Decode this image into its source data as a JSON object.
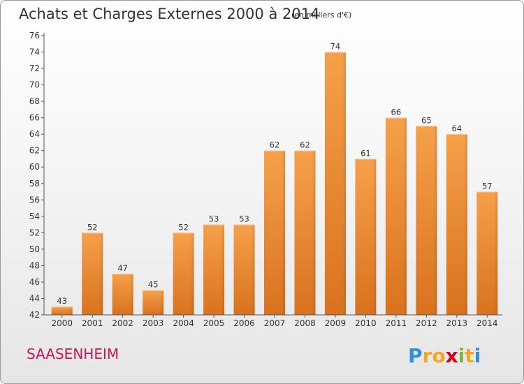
{
  "chart_data": {
    "type": "bar",
    "title": "Achats et Charges Externes 2000 à 2014",
    "subtitle": "(en milliers d'€)",
    "categories": [
      "2000",
      "2001",
      "2002",
      "2003",
      "2004",
      "2005",
      "2006",
      "2007",
      "2008",
      "2009",
      "2010",
      "2011",
      "2012",
      "2013",
      "2014"
    ],
    "values": [
      43,
      52,
      47,
      45,
      52,
      53,
      53,
      62,
      62,
      74,
      61,
      66,
      65,
      64,
      57
    ],
    "ylim": [
      42,
      76
    ],
    "yticks": [
      42,
      44,
      46,
      48,
      50,
      52,
      54,
      56,
      58,
      60,
      62,
      64,
      66,
      68,
      70,
      72,
      74,
      76
    ],
    "grid": false,
    "bar_color": "#f08c35"
  },
  "commune": "SAASENHEIM",
  "logo": {
    "letters": [
      "P",
      "r",
      "o",
      "x",
      "i",
      "t",
      "i"
    ],
    "colors": [
      "#2f8fd8",
      "#f5a623",
      "#f5a623",
      "#d0021b",
      "#7cb342",
      "#f5a623",
      "#2f8fd8"
    ]
  }
}
